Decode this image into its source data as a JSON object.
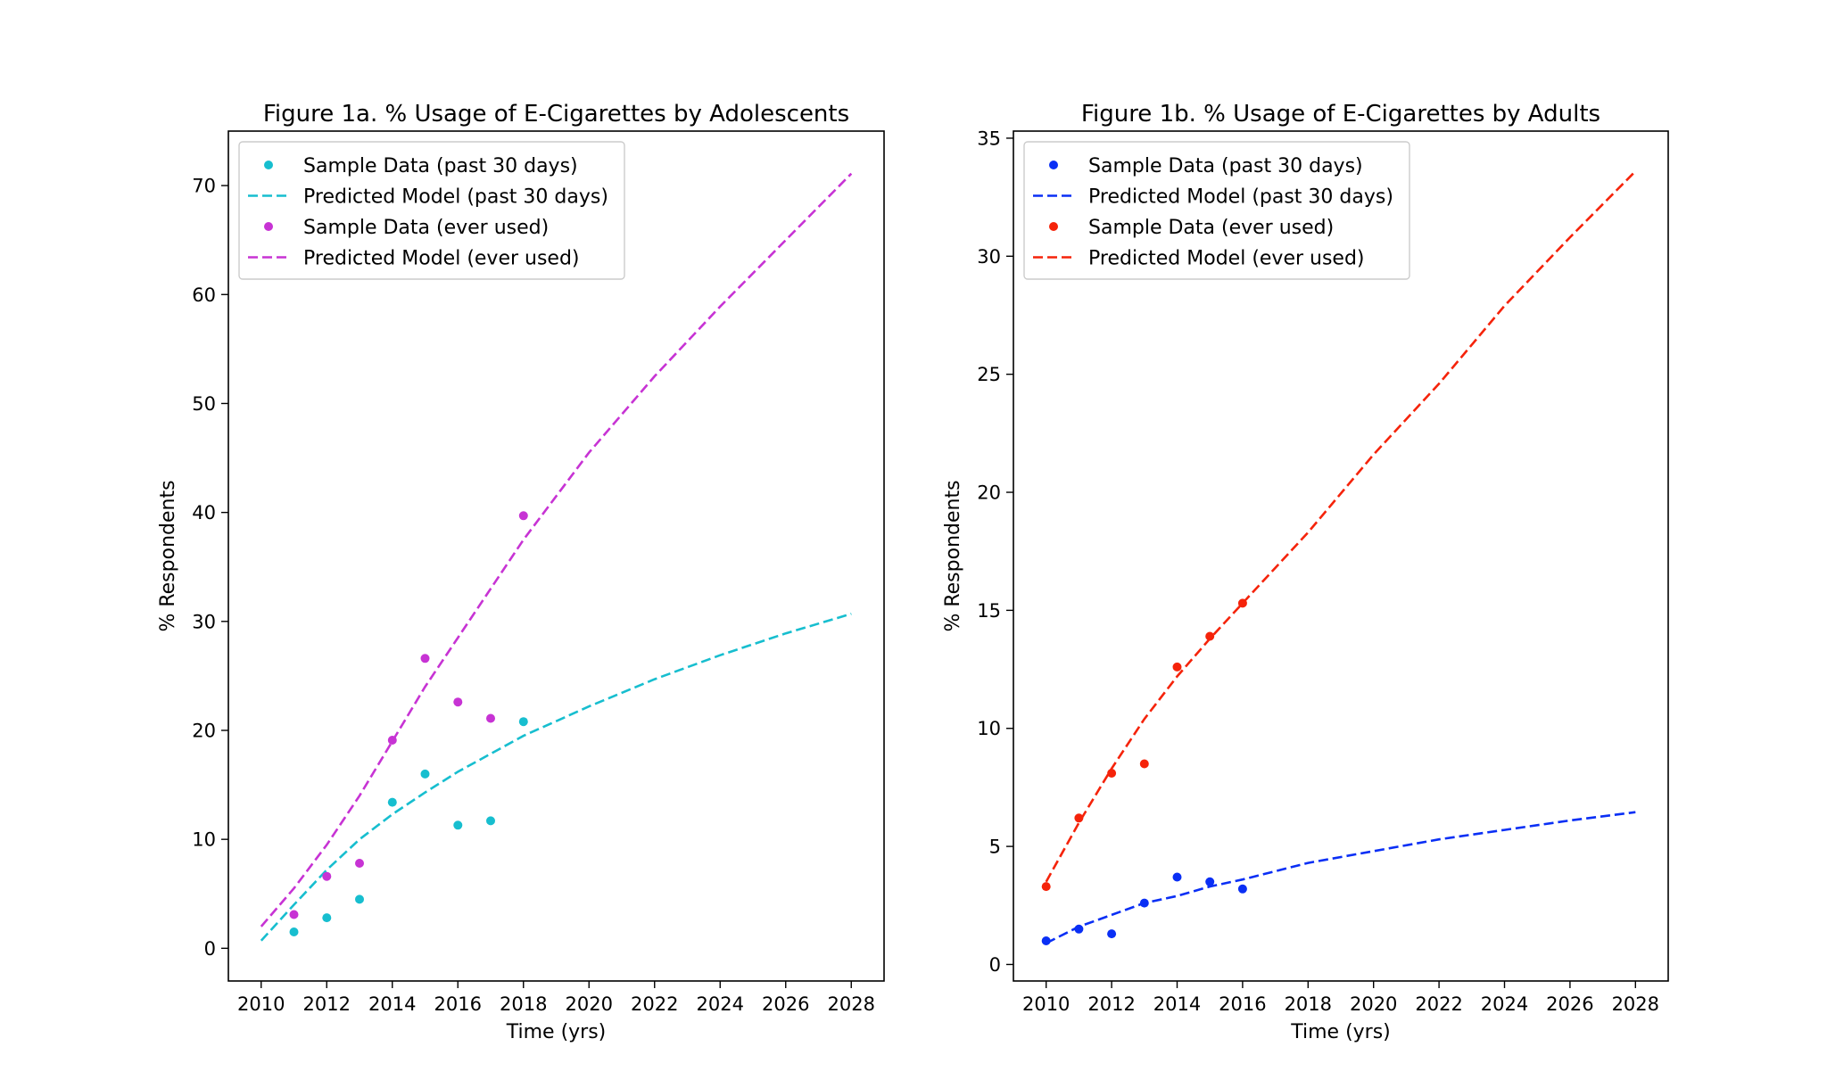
{
  "chart_data": [
    {
      "type": "scatter",
      "title": "Figure 1a. % Usage of E-Cigarettes by Adolescents",
      "xlabel": "Time (yrs)",
      "ylabel": "% Respondents",
      "xlim": [
        2009,
        2029
      ],
      "ylim": [
        -3,
        75
      ],
      "xticks": [
        2010,
        2012,
        2014,
        2016,
        2018,
        2020,
        2022,
        2024,
        2026,
        2028
      ],
      "yticks": [
        0,
        10,
        20,
        30,
        40,
        50,
        60,
        70
      ],
      "legend_position": "upper-left",
      "series": [
        {
          "name": "Sample Data (past 30 days)",
          "kind": "points",
          "color": "#17becf",
          "x": [
            2011,
            2012,
            2013,
            2014,
            2015,
            2016,
            2017,
            2018
          ],
          "y": [
            1.5,
            2.8,
            4.5,
            13.4,
            16.0,
            11.3,
            11.7,
            20.8
          ]
        },
        {
          "name": "Predicted Model (past 30 days)",
          "kind": "dashed-line",
          "color": "#17becf",
          "x": [
            2010,
            2011,
            2012,
            2013,
            2014,
            2015,
            2016,
            2018,
            2020,
            2022,
            2024,
            2026,
            2028
          ],
          "y": [
            0.7,
            4.0,
            7.2,
            10.0,
            12.3,
            14.3,
            16.2,
            19.5,
            22.2,
            24.7,
            26.9,
            28.9,
            30.7
          ]
        },
        {
          "name": "Sample Data (ever used)",
          "kind": "points",
          "color": "#c733d4",
          "x": [
            2011,
            2012,
            2013,
            2014,
            2015,
            2016,
            2017,
            2018
          ],
          "y": [
            3.1,
            6.6,
            7.8,
            19.1,
            26.6,
            22.6,
            21.1,
            39.7
          ]
        },
        {
          "name": "Predicted Model (ever used)",
          "kind": "dashed-line",
          "color": "#c733d4",
          "x": [
            2010,
            2011,
            2012,
            2013,
            2014,
            2015,
            2016,
            2017,
            2018,
            2020,
            2022,
            2024,
            2026,
            2028
          ],
          "y": [
            2.0,
            5.5,
            9.5,
            14.0,
            19.0,
            24.0,
            28.5,
            33.0,
            37.5,
            45.5,
            52.5,
            58.9,
            65.0,
            71.1
          ]
        }
      ]
    },
    {
      "type": "scatter",
      "title": "Figure 1b. % Usage of E-Cigarettes by Adults",
      "xlabel": "Time (yrs)",
      "ylabel": "% Respondents",
      "xlim": [
        2009,
        2029
      ],
      "ylim": [
        -0.7,
        35.3
      ],
      "xticks": [
        2010,
        2012,
        2014,
        2016,
        2018,
        2020,
        2022,
        2024,
        2026,
        2028
      ],
      "yticks": [
        0,
        5,
        10,
        15,
        20,
        25,
        30,
        35
      ],
      "legend_position": "upper-left",
      "series": [
        {
          "name": "Sample Data (past 30 days)",
          "kind": "points",
          "color": "#0a2ff5",
          "x": [
            2010,
            2011,
            2012,
            2013,
            2014,
            2015,
            2016
          ],
          "y": [
            1.0,
            1.5,
            1.3,
            2.6,
            3.7,
            3.5,
            3.2
          ]
        },
        {
          "name": "Predicted Model (past 30 days)",
          "kind": "dashed-line",
          "color": "#0a2ff5",
          "x": [
            2010,
            2011,
            2012,
            2013,
            2014,
            2015,
            2016,
            2018,
            2020,
            2022,
            2024,
            2026,
            2028
          ],
          "y": [
            0.9,
            1.6,
            2.1,
            2.6,
            2.9,
            3.3,
            3.6,
            4.3,
            4.8,
            5.3,
            5.7,
            6.1,
            6.45
          ]
        },
        {
          "name": "Sample Data (ever used)",
          "kind": "points",
          "color": "#f5230a",
          "x": [
            2010,
            2011,
            2012,
            2013,
            2014,
            2015,
            2016
          ],
          "y": [
            3.3,
            6.2,
            8.1,
            8.5,
            12.6,
            13.9,
            15.3
          ]
        },
        {
          "name": "Predicted Model (ever used)",
          "kind": "dashed-line",
          "color": "#f5230a",
          "x": [
            2010,
            2011,
            2012,
            2013,
            2014,
            2015,
            2016,
            2017,
            2018,
            2020,
            2022,
            2024,
            2026,
            2028
          ],
          "y": [
            3.5,
            6.0,
            8.3,
            10.4,
            12.2,
            13.8,
            15.3,
            16.8,
            18.3,
            21.6,
            24.6,
            27.9,
            30.8,
            33.6
          ]
        }
      ]
    }
  ]
}
